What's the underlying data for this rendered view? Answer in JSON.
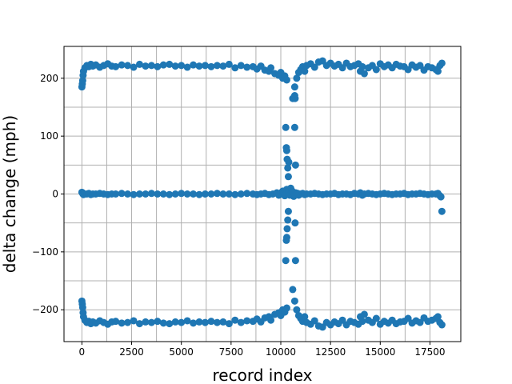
{
  "chart_data": {
    "type": "scatter",
    "title": "",
    "xlabel": "record index",
    "ylabel": "delta change (mph)",
    "xlim": [
      -900,
      19050
    ],
    "ylim": [
      -255,
      255
    ],
    "x_ticks": [
      0,
      2500,
      5000,
      7500,
      10000,
      12500,
      15000,
      17500
    ],
    "x_tick_labels": [
      "0",
      "2500",
      "5000",
      "7500",
      "10000",
      "12500",
      "15000",
      "17500"
    ],
    "y_ticks": [
      -200,
      -100,
      0,
      100,
      200
    ],
    "y_tick_labels": [
      "−200",
      "−100",
      "0",
      "100",
      "200"
    ],
    "x_grid_minor": [
      1250,
      3750,
      6250,
      8750,
      11250,
      13750,
      16250
    ],
    "y_grid_minor": [
      -150,
      -50,
      50,
      150
    ],
    "grid": true,
    "marker_color": "#1f77b4",
    "series": [
      {
        "x": [
          0,
          20,
          40,
          60,
          80,
          150,
          250,
          350,
          450,
          550,
          700,
          900,
          1100,
          1300,
          1500,
          1700,
          2000,
          2300,
          2600,
          2900,
          3200,
          3500,
          3800,
          4100,
          4400,
          4700,
          5000,
          5300,
          5600,
          5900,
          6200,
          6500,
          6800,
          7100,
          7400,
          7700,
          8000,
          8300,
          8600,
          8800,
          9000,
          9200,
          9400,
          9600,
          9800,
          9900,
          10000,
          10050,
          10100,
          10150,
          10200,
          10250,
          10300,
          10400,
          10450,
          10500,
          10550,
          10600,
          10650,
          10700,
          10750,
          10800,
          10850,
          10900,
          11000,
          11100,
          11200,
          11300,
          11500,
          11700,
          11900,
          12100,
          12300,
          12500,
          12700,
          12900,
          13100,
          13300,
          13500,
          13700,
          13900,
          14000,
          14100,
          14200,
          14400,
          14600,
          14800,
          15000,
          15200,
          15400,
          15600,
          15800,
          16000,
          16200,
          16400,
          16600,
          16800,
          17000,
          17200,
          17400,
          17600,
          17800,
          17900,
          18000,
          18050,
          18100
        ],
        "y": [
          3,
          2,
          1,
          0,
          -1,
          0,
          0,
          1,
          -1,
          0,
          0,
          1,
          0,
          -1,
          0,
          0,
          1,
          0,
          -1,
          0,
          0,
          1,
          0,
          0,
          -1,
          0,
          1,
          0,
          0,
          -1,
          0,
          0,
          1,
          0,
          0,
          -1,
          0,
          1,
          0,
          -1,
          0,
          1,
          -1,
          0,
          2,
          -2,
          1,
          3,
          5,
          2,
          -3,
          -1,
          8,
          4,
          -2,
          10,
          6,
          3,
          -4,
          -1,
          2,
          0,
          1,
          -2,
          0,
          1,
          -1,
          0,
          0,
          1,
          0,
          -1,
          0,
          0,
          1,
          -1,
          0,
          0,
          -1,
          1,
          0,
          2,
          -2,
          0,
          1,
          0,
          -1,
          0,
          1,
          0,
          -1,
          0,
          0,
          1,
          -1,
          0,
          0,
          1,
          0,
          -1,
          0,
          0,
          1,
          -3,
          -5,
          -30
        ]
      },
      {
        "x": [
          0,
          20,
          40,
          60,
          80,
          150,
          250,
          350,
          450,
          550,
          700,
          900,
          1100,
          1300,
          1500,
          1700,
          2000,
          2300,
          2600,
          2900,
          3200,
          3500,
          3800,
          4100,
          4400,
          4700,
          5000,
          5300,
          5600,
          5900,
          6200,
          6500,
          6800,
          7100,
          7400,
          7700,
          8000,
          8300,
          8600,
          8800,
          9000,
          9200,
          9400,
          9500,
          9700,
          9900,
          10000,
          10100,
          10200,
          10300,
          10600,
          10700,
          10800,
          10900,
          11000,
          11100,
          11200,
          11300,
          11500,
          11700,
          11900,
          12100,
          12300,
          12500,
          12700,
          12900,
          13100,
          13300,
          13500,
          13700,
          13900,
          14000,
          14100,
          14200,
          14400,
          14600,
          14800,
          15000,
          15200,
          15400,
          15600,
          15800,
          16000,
          16200,
          16400,
          16600,
          16800,
          17000,
          17200,
          17400,
          17600,
          17800,
          17900,
          18000,
          18100
        ],
        "y": [
          185,
          190,
          196,
          205,
          212,
          218,
          222,
          220,
          224,
          221,
          223,
          219,
          222,
          225,
          221,
          220,
          223,
          222,
          219,
          224,
          221,
          222,
          220,
          223,
          224,
          221,
          222,
          219,
          223,
          221,
          222,
          220,
          222,
          221,
          224,
          218,
          222,
          219,
          220,
          216,
          221,
          214,
          212,
          218,
          208,
          205,
          210,
          200,
          204,
          197,
          165,
          185,
          200,
          210,
          215,
          220,
          212,
          222,
          225,
          219,
          228,
          230,
          222,
          226,
          221,
          224,
          218,
          226,
          220,
          222,
          225,
          212,
          220,
          208,
          218,
          222,
          215,
          225,
          220,
          223,
          218,
          224,
          221,
          220,
          215,
          223,
          219,
          222,
          214,
          220,
          218,
          215,
          212,
          222,
          226
        ]
      },
      {
        "x": [
          0,
          20,
          40,
          60,
          80,
          150,
          250,
          350,
          450,
          550,
          700,
          900,
          1100,
          1300,
          1500,
          1700,
          2000,
          2300,
          2600,
          2900,
          3200,
          3500,
          3800,
          4100,
          4400,
          4700,
          5000,
          5300,
          5600,
          5900,
          6200,
          6500,
          6800,
          7100,
          7400,
          7700,
          8000,
          8300,
          8600,
          8800,
          9000,
          9200,
          9400,
          9500,
          9700,
          9900,
          10000,
          10100,
          10200,
          10300,
          10600,
          10700,
          10800,
          10900,
          11000,
          11100,
          11200,
          11300,
          11500,
          11700,
          11900,
          12100,
          12300,
          12500,
          12700,
          12900,
          13100,
          13300,
          13500,
          13700,
          13900,
          14000,
          14100,
          14200,
          14400,
          14600,
          14800,
          15000,
          15200,
          15400,
          15600,
          15800,
          16000,
          16200,
          16400,
          16600,
          16800,
          17000,
          17200,
          17400,
          17600,
          17800,
          17900,
          18000,
          18100
        ],
        "y": [
          -185,
          -190,
          -196,
          -205,
          -212,
          -218,
          -222,
          -220,
          -224,
          -221,
          -223,
          -219,
          -222,
          -225,
          -221,
          -220,
          -223,
          -222,
          -219,
          -224,
          -221,
          -222,
          -220,
          -223,
          -224,
          -221,
          -222,
          -219,
          -223,
          -221,
          -222,
          -220,
          -222,
          -221,
          -224,
          -218,
          -222,
          -219,
          -220,
          -216,
          -221,
          -214,
          -212,
          -218,
          -208,
          -205,
          -210,
          -200,
          -204,
          -197,
          -165,
          -185,
          -200,
          -210,
          -215,
          -220,
          -212,
          -222,
          -225,
          -219,
          -228,
          -230,
          -222,
          -226,
          -221,
          -224,
          -218,
          -226,
          -220,
          -222,
          -225,
          -212,
          -220,
          -208,
          -218,
          -222,
          -215,
          -225,
          -220,
          -223,
          -218,
          -224,
          -221,
          -220,
          -215,
          -223,
          -219,
          -222,
          -214,
          -220,
          -218,
          -215,
          -212,
          -222,
          -226
        ]
      },
      {
        "x": [
          10250,
          10280,
          10300,
          10320,
          10350,
          10380,
          10400,
          10700,
          10720,
          10740
        ],
        "y": [
          115,
          80,
          75,
          60,
          45,
          30,
          55,
          115,
          -50,
          -115
        ]
      },
      {
        "x": [
          10250,
          10280,
          10300,
          10320,
          10350,
          10380,
          10700,
          10720,
          10740
        ],
        "y": [
          -115,
          -80,
          -75,
          -60,
          -45,
          -30,
          170,
          165,
          50
        ]
      }
    ]
  }
}
